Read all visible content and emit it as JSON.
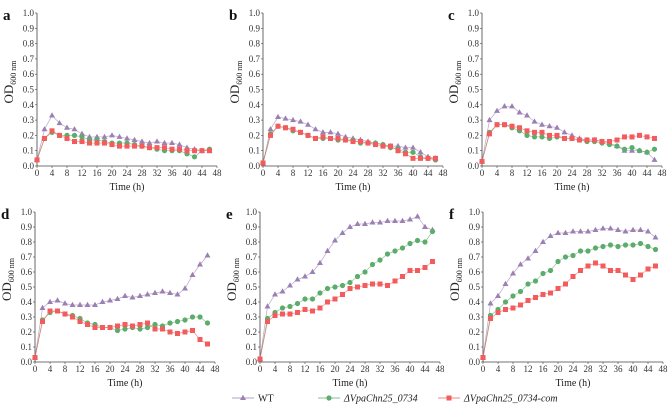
{
  "chart_data": {
    "type": "line",
    "x": [
      0,
      2,
      4,
      6,
      8,
      10,
      12,
      14,
      16,
      18,
      20,
      22,
      24,
      26,
      28,
      30,
      32,
      34,
      36,
      38,
      40,
      42,
      44,
      46
    ],
    "xlabel": "Time (h)",
    "ylabel_main": "OD",
    "ylabel_sub": "600 nm",
    "xlim": [
      0,
      48
    ],
    "ylim": [
      0,
      1.0
    ],
    "xticks": [
      0,
      4,
      8,
      12,
      16,
      20,
      24,
      28,
      32,
      36,
      40,
      44,
      48
    ],
    "yticks": [
      "0.0",
      "0.1",
      "0.2",
      "0.3",
      "0.4",
      "0.5",
      "0.6",
      "0.7",
      "0.8",
      "0.9",
      "1.0"
    ],
    "legend": {
      "placement": "bottom-center",
      "entries": [
        {
          "name": "WT",
          "color": "#9c80b4",
          "marker": "triangle"
        },
        {
          "name": "ΔVpaChn25_0734",
          "color": "#5cac6c",
          "marker": "circle"
        },
        {
          "name": "ΔVpaChn25_0734-com",
          "color": "#f25c5c",
          "marker": "square"
        }
      ]
    },
    "panels": [
      {
        "label": "a",
        "series": [
          [
            0.04,
            0.24,
            0.33,
            0.28,
            0.25,
            0.24,
            0.21,
            0.19,
            0.19,
            0.19,
            0.2,
            0.19,
            0.18,
            0.17,
            0.16,
            0.15,
            0.16,
            0.15,
            0.15,
            0.14,
            0.12,
            0.11,
            0.1,
            0.1
          ],
          [
            0.04,
            0.18,
            0.22,
            0.2,
            0.2,
            0.2,
            0.19,
            0.17,
            0.17,
            0.16,
            0.15,
            0.15,
            0.15,
            0.14,
            0.13,
            0.12,
            0.11,
            0.1,
            0.1,
            0.1,
            0.08,
            0.06,
            0.1,
            0.11
          ],
          [
            0.04,
            0.18,
            0.23,
            0.2,
            0.18,
            0.16,
            0.16,
            0.15,
            0.15,
            0.15,
            0.14,
            0.13,
            0.13,
            0.13,
            0.13,
            0.12,
            0.12,
            0.12,
            0.11,
            0.11,
            0.1,
            0.1,
            0.1,
            0.1
          ]
        ]
      },
      {
        "label": "b",
        "series": [
          [
            0.02,
            0.24,
            0.32,
            0.31,
            0.3,
            0.29,
            0.27,
            0.24,
            0.22,
            0.22,
            0.21,
            0.19,
            0.18,
            0.17,
            0.16,
            0.15,
            0.14,
            0.13,
            0.13,
            0.12,
            0.12,
            0.09,
            0.06,
            0.05
          ],
          [
            0.02,
            0.21,
            0.26,
            0.25,
            0.23,
            0.22,
            0.2,
            0.18,
            0.18,
            0.18,
            0.17,
            0.17,
            0.17,
            0.15,
            0.15,
            0.15,
            0.14,
            0.12,
            0.11,
            0.09,
            0.09,
            0.06,
            0.05,
            0.04
          ],
          [
            0.02,
            0.2,
            0.26,
            0.25,
            0.24,
            0.22,
            0.2,
            0.18,
            0.19,
            0.18,
            0.18,
            0.17,
            0.16,
            0.16,
            0.15,
            0.14,
            0.13,
            0.13,
            0.1,
            0.08,
            0.05,
            0.05,
            0.05,
            0.05
          ]
        ]
      },
      {
        "label": "c",
        "series": [
          [
            0.03,
            0.3,
            0.36,
            0.39,
            0.39,
            0.35,
            0.33,
            0.29,
            0.27,
            0.26,
            0.25,
            0.22,
            0.2,
            0.18,
            0.17,
            0.17,
            0.16,
            0.15,
            0.13,
            0.1,
            0.1,
            0.1,
            0.09,
            0.04
          ],
          [
            0.03,
            0.22,
            0.27,
            0.27,
            0.25,
            0.23,
            0.2,
            0.19,
            0.19,
            0.18,
            0.19,
            0.18,
            0.18,
            0.17,
            0.16,
            0.16,
            0.15,
            0.14,
            0.13,
            0.11,
            0.12,
            0.1,
            0.09,
            0.11
          ],
          [
            0.03,
            0.21,
            0.27,
            0.27,
            0.26,
            0.25,
            0.23,
            0.22,
            0.22,
            0.2,
            0.2,
            0.18,
            0.18,
            0.17,
            0.17,
            0.17,
            0.16,
            0.16,
            0.17,
            0.19,
            0.19,
            0.2,
            0.19,
            0.18
          ]
        ]
      },
      {
        "label": "d",
        "series": [
          [
            0.03,
            0.36,
            0.4,
            0.41,
            0.39,
            0.38,
            0.38,
            0.38,
            0.38,
            0.4,
            0.41,
            0.42,
            0.44,
            0.43,
            0.44,
            0.45,
            0.46,
            0.47,
            0.46,
            0.45,
            0.49,
            0.58,
            0.65,
            0.71
          ],
          [
            0.03,
            0.28,
            0.33,
            0.34,
            0.32,
            0.31,
            0.29,
            0.26,
            0.25,
            0.23,
            0.23,
            0.21,
            0.22,
            0.23,
            0.22,
            0.23,
            0.25,
            0.24,
            0.26,
            0.27,
            0.28,
            0.3,
            0.3,
            0.26
          ],
          [
            0.03,
            0.27,
            0.34,
            0.34,
            0.32,
            0.3,
            0.27,
            0.25,
            0.23,
            0.23,
            0.23,
            0.24,
            0.25,
            0.24,
            0.25,
            0.26,
            0.22,
            0.22,
            0.2,
            0.19,
            0.2,
            0.21,
            0.15,
            0.12
          ]
        ]
      },
      {
        "label": "e",
        "series": [
          [
            0.02,
            0.37,
            0.45,
            0.47,
            0.51,
            0.55,
            0.57,
            0.6,
            0.66,
            0.74,
            0.81,
            0.86,
            0.9,
            0.92,
            0.92,
            0.93,
            0.93,
            0.94,
            0.94,
            0.94,
            0.95,
            0.97,
            0.9,
            0.88
          ],
          [
            0.02,
            0.29,
            0.33,
            0.36,
            0.37,
            0.39,
            0.42,
            0.42,
            0.46,
            0.49,
            0.5,
            0.51,
            0.53,
            0.57,
            0.6,
            0.65,
            0.68,
            0.72,
            0.74,
            0.76,
            0.79,
            0.81,
            0.8,
            0.87
          ],
          [
            0.02,
            0.27,
            0.31,
            0.32,
            0.32,
            0.33,
            0.35,
            0.34,
            0.36,
            0.4,
            0.42,
            0.45,
            0.49,
            0.5,
            0.51,
            0.52,
            0.52,
            0.51,
            0.54,
            0.57,
            0.61,
            0.61,
            0.63,
            0.67
          ]
        ]
      },
      {
        "label": "f",
        "series": [
          [
            0.03,
            0.39,
            0.44,
            0.52,
            0.59,
            0.65,
            0.69,
            0.74,
            0.8,
            0.84,
            0.86,
            0.86,
            0.87,
            0.87,
            0.87,
            0.88,
            0.89,
            0.89,
            0.88,
            0.87,
            0.88,
            0.88,
            0.87,
            0.83
          ],
          [
            0.03,
            0.31,
            0.35,
            0.4,
            0.44,
            0.47,
            0.52,
            0.54,
            0.59,
            0.61,
            0.67,
            0.7,
            0.71,
            0.74,
            0.74,
            0.76,
            0.77,
            0.78,
            0.77,
            0.78,
            0.78,
            0.79,
            0.77,
            0.75
          ],
          [
            0.03,
            0.29,
            0.33,
            0.35,
            0.36,
            0.38,
            0.41,
            0.43,
            0.45,
            0.46,
            0.49,
            0.52,
            0.57,
            0.61,
            0.64,
            0.66,
            0.64,
            0.61,
            0.61,
            0.58,
            0.55,
            0.58,
            0.62,
            0.64
          ]
        ]
      }
    ]
  }
}
